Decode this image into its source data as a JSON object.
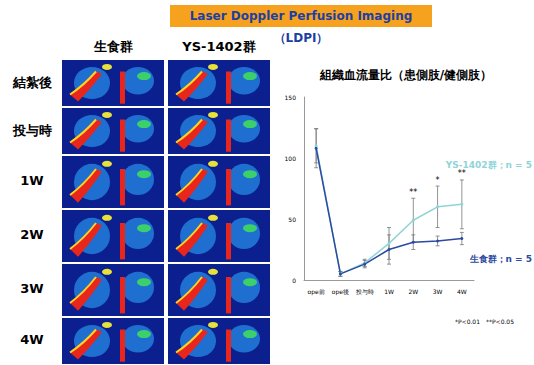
{
  "banner": "Laser Doppler Perfusion Imaging（LDPI）",
  "image_panel": {
    "columns": [
      "生食群",
      "YS-1402群"
    ],
    "rows": [
      "結紮後",
      "投与時",
      "1W",
      "2W",
      "3W",
      "4W"
    ]
  },
  "chart_data": {
    "type": "line",
    "title": "組織血流量比（患側肢/健側肢）",
    "categories": [
      "ope前",
      "ope後",
      "投与時",
      "1W",
      "2W",
      "3W",
      "4W"
    ],
    "series": [
      {
        "name": "YS-1402群；n = 5",
        "color": "#8fd4d8",
        "marker": "circle",
        "values": [
          110,
          5,
          14,
          30,
          49,
          60,
          62
        ],
        "errors": [
          14,
          2,
          3,
          13,
          18,
          17,
          20
        ]
      },
      {
        "name": "生食群；n = 5",
        "color": "#2b4aa0",
        "marker": "circle",
        "values": [
          108,
          5,
          13,
          25,
          31,
          32,
          34
        ],
        "errors": [
          16,
          2,
          3,
          12,
          6,
          4,
          5
        ]
      }
    ],
    "annotations": [
      {
        "series": "YS-1402群；n = 5",
        "category": "2W",
        "text": "**"
      },
      {
        "series": "YS-1402群；n = 5",
        "category": "3W",
        "text": "*"
      },
      {
        "series": "YS-1402群；n = 5",
        "category": "4W",
        "text": "**"
      }
    ],
    "footnote": "*P<0.01　**P<0.05",
    "ylim": [
      0,
      150
    ],
    "yticks": [
      0,
      50,
      100,
      150
    ],
    "grid": false
  }
}
